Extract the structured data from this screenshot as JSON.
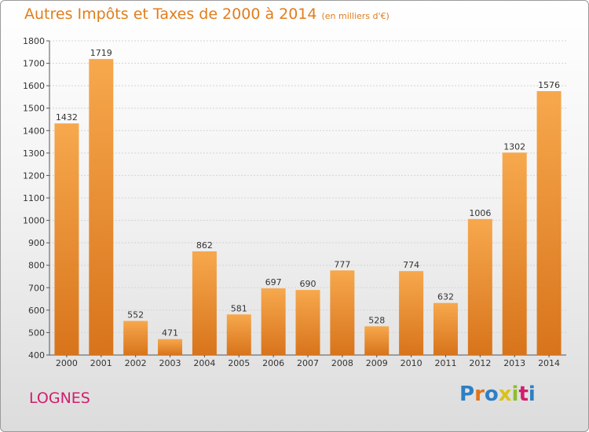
{
  "header": {
    "title": "Autres Impôts et Taxes de 2000 à 2014",
    "unit": "(en milliers d'€)"
  },
  "footer": {
    "location": "LOGNES",
    "logo_text": "Proxiti"
  },
  "colors": {
    "title": "#e07d1c",
    "location": "#d11d6e",
    "bar_light": "#f7a84d",
    "bar_dark": "#d8741b"
  },
  "chart_data": {
    "type": "bar",
    "title": "Autres Impôts et Taxes de 2000 à 2014",
    "xlabel": "",
    "ylabel": "",
    "categories": [
      "2000",
      "2001",
      "2002",
      "2003",
      "2004",
      "2005",
      "2006",
      "2007",
      "2008",
      "2009",
      "2010",
      "2011",
      "2012",
      "2013",
      "2014"
    ],
    "values": [
      1432,
      1719,
      552,
      471,
      862,
      581,
      697,
      690,
      777,
      528,
      774,
      632,
      1006,
      1302,
      1576
    ],
    "ylim": [
      400,
      1800
    ],
    "yticks": [
      400,
      500,
      600,
      700,
      800,
      900,
      1000,
      1100,
      1200,
      1300,
      1400,
      1500,
      1600,
      1700,
      1800
    ],
    "grid": true,
    "data_labels": true
  }
}
